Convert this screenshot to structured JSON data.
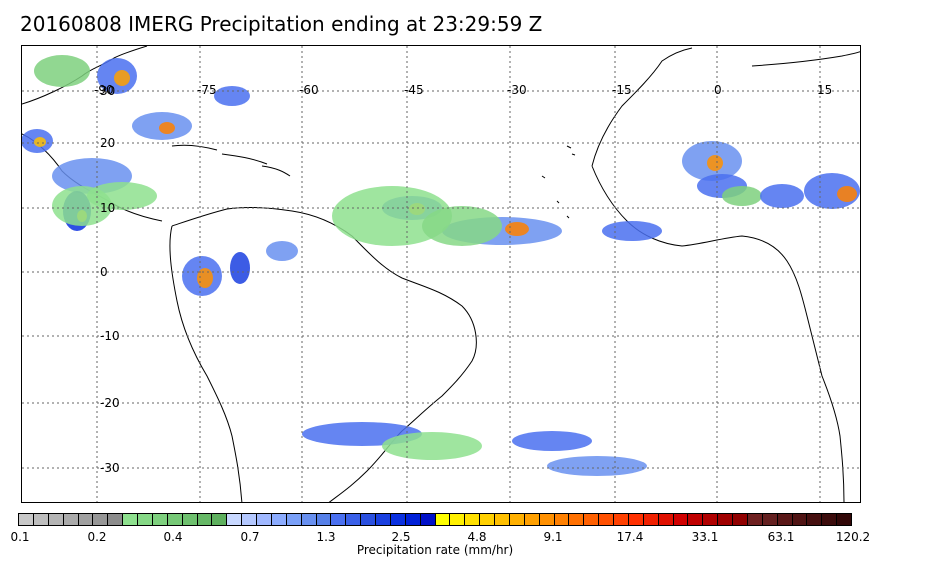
{
  "title": "20160808 IMERG Precipitation ending at 23:29:59 Z",
  "map": {
    "longitude_labels": [
      "-90",
      "-75",
      "-60",
      "-45",
      "-30",
      "-15",
      "0",
      "15"
    ],
    "latitude_labels": [
      "30",
      "20",
      "10",
      "0",
      "-10",
      "-20",
      "-30"
    ],
    "gridlines": true
  },
  "colorbar": {
    "label": "Precipitation rate (mm/hr)",
    "ticks": [
      "0.1",
      "0.2",
      "0.4",
      "0.7",
      "1.3",
      "2.5",
      "4.8",
      "9.1",
      "17.4",
      "33.1",
      "63.1",
      "120.2"
    ],
    "colors": [
      "#c8c8c8",
      "#bebebe",
      "#b4b4b4",
      "#aaaaaa",
      "#a0a0a0",
      "#969696",
      "#8c8c8c",
      "#8ee08e",
      "#86d886",
      "#7ed07e",
      "#76c876",
      "#6ec06e",
      "#66b866",
      "#5eb05e",
      "#c8d8ff",
      "#b4c8ff",
      "#a0b8ff",
      "#8cacff",
      "#7aa0f8",
      "#6890f0",
      "#5680e8",
      "#4a70f0",
      "#3a60e8",
      "#2a50e0",
      "#1a40e0",
      "#0a30e0",
      "#0020d8",
      "#0010c8",
      "#ffff00",
      "#fff000",
      "#ffe000",
      "#ffd000",
      "#ffc000",
      "#ffb000",
      "#ffa000",
      "#ff9000",
      "#ff8000",
      "#ff7000",
      "#ff6000",
      "#ff5000",
      "#ff4000",
      "#ff3000",
      "#f02000",
      "#e01000",
      "#d00000",
      "#c00000",
      "#b00000",
      "#a00000",
      "#900000",
      "#6e2020",
      "#642020",
      "#5a1818",
      "#501414",
      "#461010",
      "#3c0c0c",
      "#320808"
    ]
  }
}
